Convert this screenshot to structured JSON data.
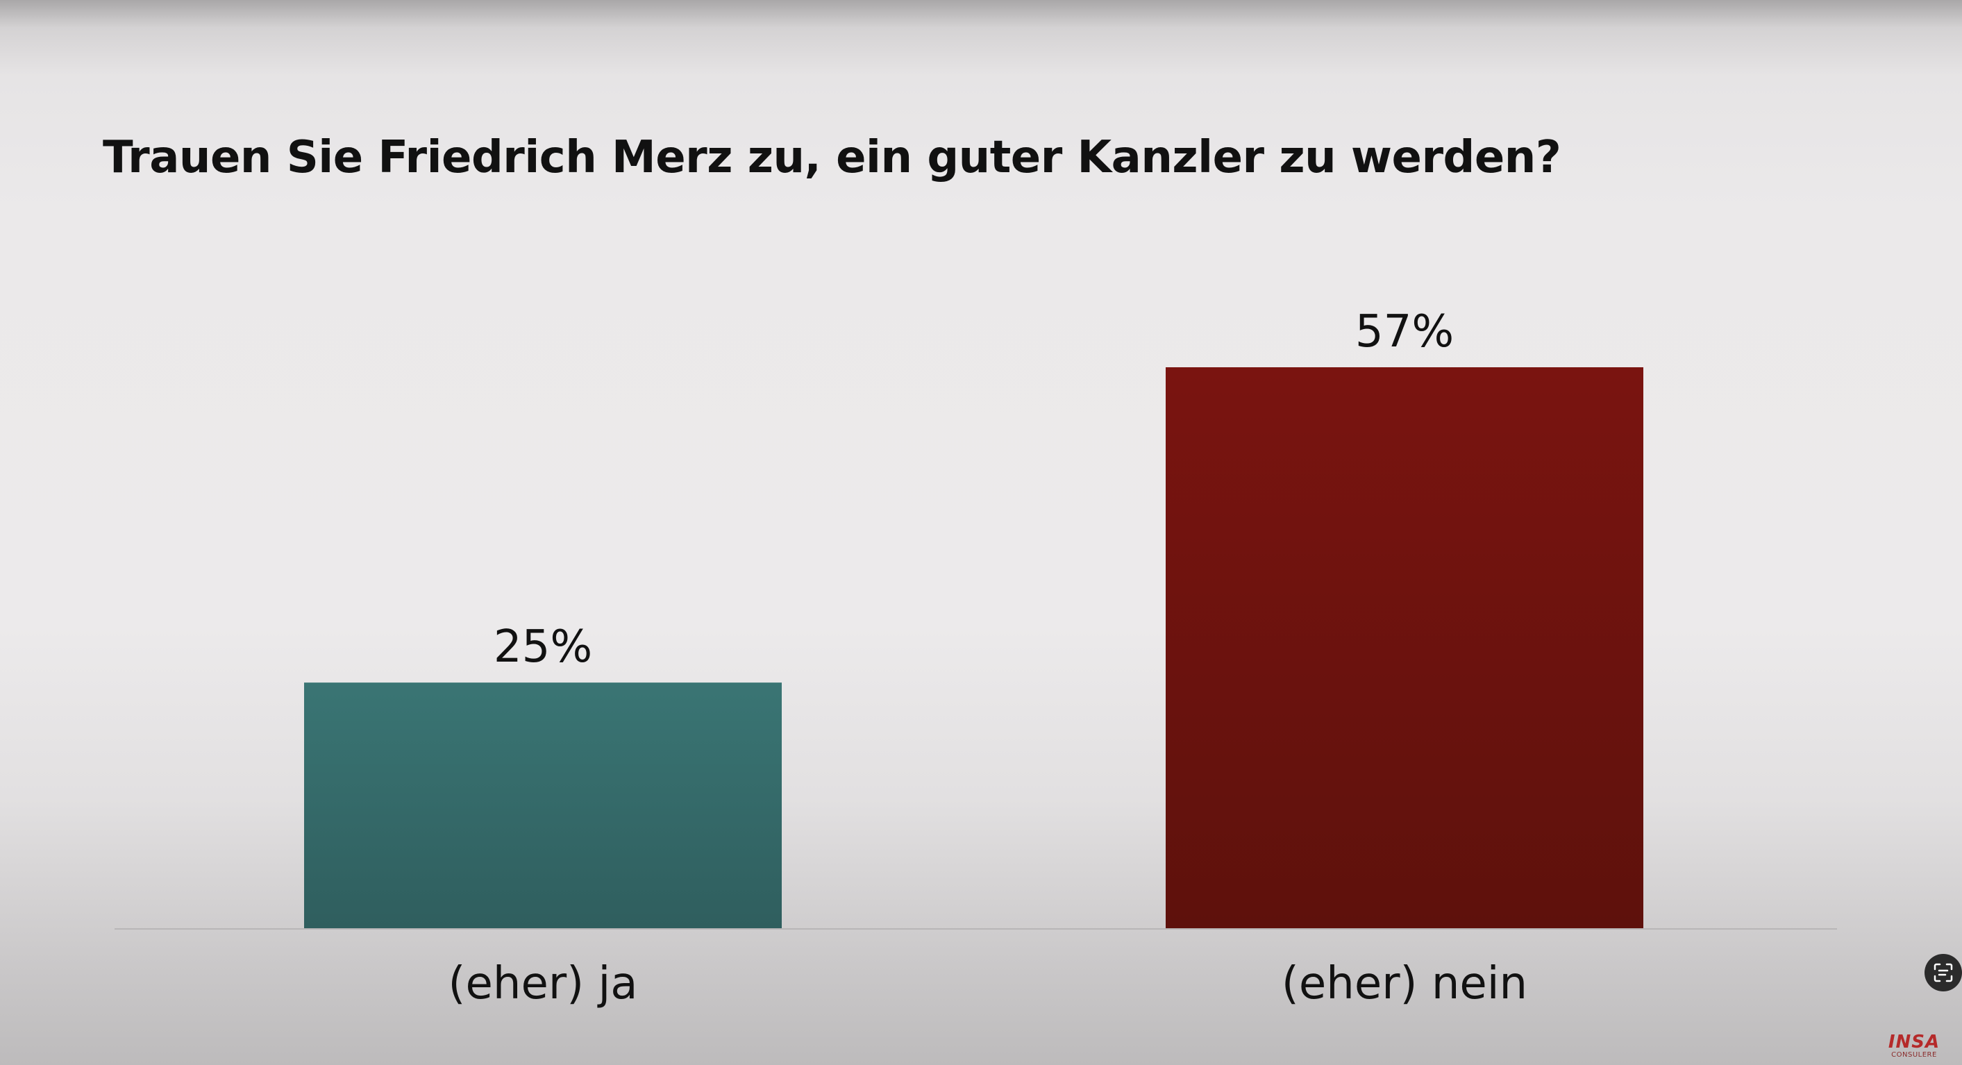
{
  "chart_data": {
    "type": "bar",
    "title": "Trauen Sie Friedrich Merz zu, ein guter Kanzler zu werden?",
    "categories": [
      "(eher) ja",
      "(eher) nein"
    ],
    "values": [
      25,
      57
    ],
    "value_labels": [
      "25%",
      "57%"
    ],
    "unit": "%",
    "colors": [
      "#3a7373",
      "#741512"
    ],
    "ylim": [
      0,
      57
    ],
    "grid": false,
    "legend": "none"
  },
  "logo": {
    "main": "INSA",
    "sub": "CONSULERE"
  },
  "icons": {
    "side_button": "text-scan-icon"
  }
}
